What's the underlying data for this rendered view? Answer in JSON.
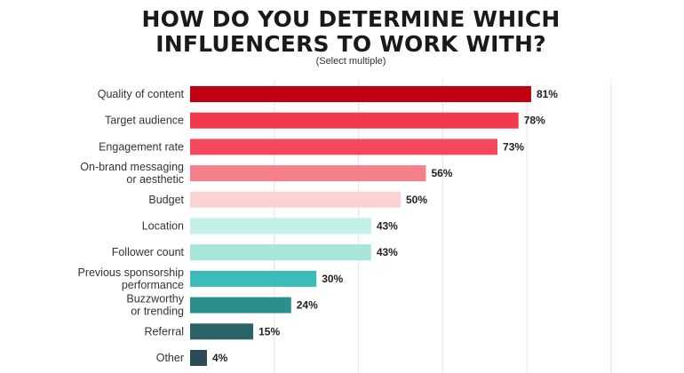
{
  "chart_data": {
    "type": "bar",
    "orientation": "horizontal",
    "title_lines": [
      "HOW DO YOU DETERMINE WHICH",
      "INFLUENCERS TO WORK WITH?"
    ],
    "subtitle": "(Select multiple)",
    "categories": [
      [
        "Quality of content"
      ],
      [
        "Target audience"
      ],
      [
        "Engagement rate"
      ],
      [
        "On-brand messaging",
        "or aesthetic"
      ],
      [
        "Budget"
      ],
      [
        "Location"
      ],
      [
        "Follower count"
      ],
      [
        "Previous sponsorship",
        "performance"
      ],
      [
        "Buzzworthy",
        "or trending"
      ],
      [
        "Referral"
      ],
      [
        "Other"
      ]
    ],
    "values": [
      81,
      78,
      73,
      56,
      50,
      43,
      43,
      30,
      24,
      15,
      4
    ],
    "value_labels": [
      "81%",
      "78%",
      "73%",
      "56%",
      "50%",
      "43%",
      "43%",
      "30%",
      "24%",
      "15%",
      "4%"
    ],
    "colors": [
      "#c00010",
      "#f23a4c",
      "#f5485a",
      "#f67f8c",
      "#fcd3d3",
      "#c2efe6",
      "#a6e7d9",
      "#3bbcba",
      "#2b908d",
      "#2a6268",
      "#2c4b55"
    ],
    "xlim": [
      0,
      100
    ],
    "grid": true
  }
}
